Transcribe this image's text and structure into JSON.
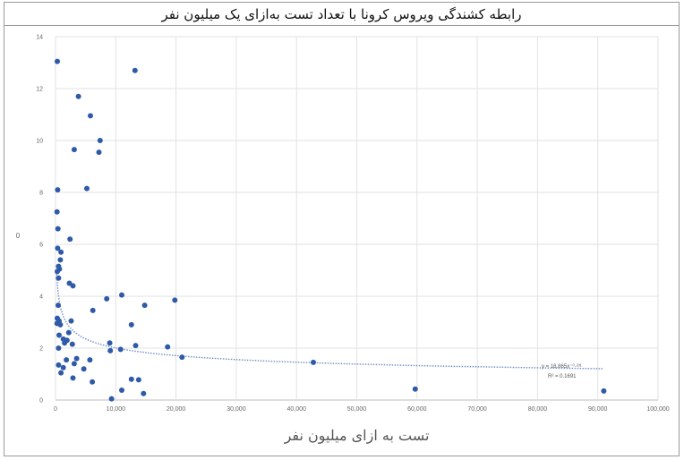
{
  "title": "رابطه کشندگی ویروس کرونا با تعداد تست به‌ازای یک میلیون نفر",
  "chart_data": {
    "type": "scatter",
    "title": "رابطه کشندگی ویروس کرونا با تعداد تست به‌ازای یک میلیون نفر",
    "xlabel": "تست به ازای میلیون نفر",
    "ylabel": "0",
    "xlim": [
      0,
      100000
    ],
    "ylim": [
      0,
      14
    ],
    "x_ticks": [
      "0",
      "10,000",
      "20,000",
      "30,000",
      "40,000",
      "50,000",
      "60,000",
      "70,000",
      "80,000",
      "90,000",
      "100,000"
    ],
    "y_ticks": [
      "0",
      "2",
      "4",
      "6",
      "8",
      "10",
      "12",
      "14"
    ],
    "grid": true,
    "point_color": "#2f5aa8",
    "trendline": {
      "type": "power",
      "coef": 16.865,
      "exp": -0.231,
      "equation_label": "y = 16.865x⁻⁰·²³¹",
      "r2_label": "R² = 0.1691",
      "color": "#6f8fc4"
    },
    "points": [
      [
        300,
        13.05
      ],
      [
        13200,
        12.7
      ],
      [
        3800,
        11.7
      ],
      [
        5800,
        10.95
      ],
      [
        7400,
        10.0
      ],
      [
        3100,
        9.65
      ],
      [
        7200,
        9.55
      ],
      [
        5200,
        8.15
      ],
      [
        350,
        8.1
      ],
      [
        250,
        7.25
      ],
      [
        400,
        6.6
      ],
      [
        2400,
        6.2
      ],
      [
        350,
        5.85
      ],
      [
        900,
        5.7
      ],
      [
        800,
        5.4
      ],
      [
        500,
        5.15
      ],
      [
        650,
        5.05
      ],
      [
        300,
        4.95
      ],
      [
        500,
        4.7
      ],
      [
        2300,
        4.5
      ],
      [
        2900,
        4.4
      ],
      [
        11000,
        4.05
      ],
      [
        8500,
        3.9
      ],
      [
        19800,
        3.85
      ],
      [
        14800,
        3.65
      ],
      [
        450,
        3.65
      ],
      [
        6200,
        3.45
      ],
      [
        300,
        3.15
      ],
      [
        600,
        3.05
      ],
      [
        250,
        2.95
      ],
      [
        2600,
        3.05
      ],
      [
        12600,
        2.9
      ],
      [
        800,
        2.9
      ],
      [
        2200,
        2.6
      ],
      [
        600,
        2.5
      ],
      [
        1300,
        2.35
      ],
      [
        1900,
        2.3
      ],
      [
        1500,
        2.2
      ],
      [
        9000,
        2.2
      ],
      [
        2800,
        2.15
      ],
      [
        13300,
        2.1
      ],
      [
        18600,
        2.05
      ],
      [
        500,
        2.0
      ],
      [
        10800,
        1.95
      ],
      [
        9100,
        1.9
      ],
      [
        21000,
        1.65
      ],
      [
        3500,
        1.6
      ],
      [
        1800,
        1.55
      ],
      [
        5700,
        1.55
      ],
      [
        42800,
        1.45
      ],
      [
        3100,
        1.4
      ],
      [
        500,
        1.35
      ],
      [
        1300,
        1.25
      ],
      [
        4700,
        1.2
      ],
      [
        900,
        1.05
      ],
      [
        2900,
        0.85
      ],
      [
        12600,
        0.8
      ],
      [
        13800,
        0.78
      ],
      [
        6100,
        0.7
      ],
      [
        59700,
        0.42
      ],
      [
        11000,
        0.38
      ],
      [
        91000,
        0.35
      ],
      [
        14600,
        0.25
      ],
      [
        9300,
        0.05
      ]
    ]
  }
}
